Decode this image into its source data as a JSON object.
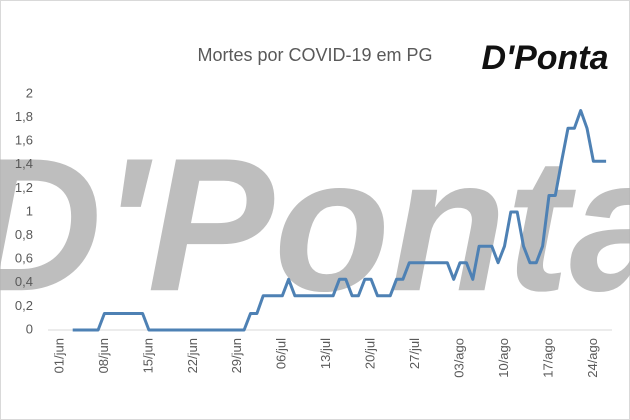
{
  "chart_data": {
    "type": "line",
    "title": "Mortes por COVID-19 em PG",
    "logo": "D'Ponta",
    "watermark": "D'Ponta",
    "categories": [
      "01/jun",
      null,
      null,
      null,
      null,
      null,
      null,
      "08/jun",
      null,
      null,
      null,
      null,
      null,
      null,
      "15/jun",
      null,
      null,
      null,
      null,
      null,
      null,
      "22/jun",
      null,
      null,
      null,
      null,
      null,
      null,
      "29/jun",
      null,
      null,
      null,
      null,
      null,
      null,
      "06/jul",
      null,
      null,
      null,
      null,
      null,
      null,
      "13/jul",
      null,
      null,
      null,
      null,
      null,
      null,
      "20/jul",
      null,
      null,
      null,
      null,
      null,
      null,
      "27/jul",
      null,
      null,
      null,
      null,
      null,
      null,
      "03/ago",
      null,
      null,
      null,
      null,
      null,
      null,
      "10/ago",
      null,
      null,
      null,
      null,
      null,
      null,
      "17/ago",
      null,
      null,
      null,
      null,
      null,
      null,
      "24/ago",
      null,
      null
    ],
    "series": [
      {
        "color": "#4e81b4",
        "values": [
          null,
          null,
          0,
          0,
          0,
          0,
          0,
          0.14,
          0.14,
          0.14,
          0.14,
          0.14,
          0.14,
          0.14,
          0,
          0,
          0,
          0,
          0,
          0,
          0,
          0,
          0,
          0,
          0,
          0,
          0,
          0,
          0,
          0,
          0.14,
          0.14,
          0.29,
          0.29,
          0.29,
          0.29,
          0.43,
          0.29,
          0.29,
          0.29,
          0.29,
          0.29,
          0.29,
          0.29,
          0.43,
          0.43,
          0.29,
          0.29,
          0.43,
          0.43,
          0.29,
          0.29,
          0.29,
          0.43,
          0.43,
          0.57,
          0.57,
          0.57,
          0.57,
          0.57,
          0.57,
          0.57,
          0.43,
          0.57,
          0.57,
          0.43,
          0.71,
          0.71,
          0.71,
          0.57,
          0.71,
          1,
          1,
          0.71,
          0.57,
          0.57,
          0.71,
          1.14,
          1.14,
          1.43,
          1.71,
          1.71,
          1.86,
          1.71,
          1.43,
          1.43,
          1.43
        ]
      }
    ],
    "ylim": [
      0,
      2
    ],
    "yticks": [
      0,
      {
        "value": 0.2,
        "label": "0,2"
      },
      {
        "value": 0.4,
        "label": "0,4"
      },
      {
        "value": 0.6,
        "label": "0,6"
      },
      {
        "value": 0.8,
        "label": "0,8"
      },
      1,
      {
        "value": 1.2,
        "label": "1,2"
      },
      {
        "value": 1.4,
        "label": "1,4"
      },
      {
        "value": 1.6,
        "label": "1,6"
      },
      {
        "value": 1.8,
        "label": "1,8"
      },
      2
    ],
    "grid": false
  }
}
